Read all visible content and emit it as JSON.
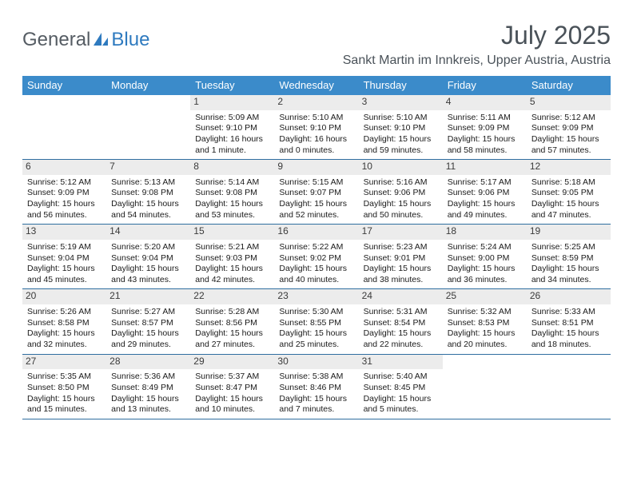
{
  "brand": {
    "general": "General",
    "blue": "Blue"
  },
  "title": "July 2025",
  "subtitle": "Sankt Martin im Innkreis, Upper Austria, Austria",
  "colors": {
    "header_bg": "#3b8bca",
    "header_text": "#ffffff",
    "rule": "#2f6ea0",
    "daynum_bg": "#ececec",
    "text": "#1a1a1a",
    "title_color": "#4a5259",
    "brand_gray": "#555c63",
    "brand_blue": "#2e7abf"
  },
  "fonts": {
    "title_size_pt": 24,
    "subtitle_size_pt": 12,
    "dow_size_pt": 10,
    "body_size_pt": 8
  },
  "days_of_week": [
    "Sunday",
    "Monday",
    "Tuesday",
    "Wednesday",
    "Thursday",
    "Friday",
    "Saturday"
  ],
  "weeks": [
    [
      {
        "num": "",
        "empty": true
      },
      {
        "num": "",
        "empty": true
      },
      {
        "num": "1",
        "sunrise": "Sunrise: 5:09 AM",
        "sunset": "Sunset: 9:10 PM",
        "dl1": "Daylight: 16 hours",
        "dl2": "and 1 minute."
      },
      {
        "num": "2",
        "sunrise": "Sunrise: 5:10 AM",
        "sunset": "Sunset: 9:10 PM",
        "dl1": "Daylight: 16 hours",
        "dl2": "and 0 minutes."
      },
      {
        "num": "3",
        "sunrise": "Sunrise: 5:10 AM",
        "sunset": "Sunset: 9:10 PM",
        "dl1": "Daylight: 15 hours",
        "dl2": "and 59 minutes."
      },
      {
        "num": "4",
        "sunrise": "Sunrise: 5:11 AM",
        "sunset": "Sunset: 9:09 PM",
        "dl1": "Daylight: 15 hours",
        "dl2": "and 58 minutes."
      },
      {
        "num": "5",
        "sunrise": "Sunrise: 5:12 AM",
        "sunset": "Sunset: 9:09 PM",
        "dl1": "Daylight: 15 hours",
        "dl2": "and 57 minutes."
      }
    ],
    [
      {
        "num": "6",
        "sunrise": "Sunrise: 5:12 AM",
        "sunset": "Sunset: 9:09 PM",
        "dl1": "Daylight: 15 hours",
        "dl2": "and 56 minutes."
      },
      {
        "num": "7",
        "sunrise": "Sunrise: 5:13 AM",
        "sunset": "Sunset: 9:08 PM",
        "dl1": "Daylight: 15 hours",
        "dl2": "and 54 minutes."
      },
      {
        "num": "8",
        "sunrise": "Sunrise: 5:14 AM",
        "sunset": "Sunset: 9:08 PM",
        "dl1": "Daylight: 15 hours",
        "dl2": "and 53 minutes."
      },
      {
        "num": "9",
        "sunrise": "Sunrise: 5:15 AM",
        "sunset": "Sunset: 9:07 PM",
        "dl1": "Daylight: 15 hours",
        "dl2": "and 52 minutes."
      },
      {
        "num": "10",
        "sunrise": "Sunrise: 5:16 AM",
        "sunset": "Sunset: 9:06 PM",
        "dl1": "Daylight: 15 hours",
        "dl2": "and 50 minutes."
      },
      {
        "num": "11",
        "sunrise": "Sunrise: 5:17 AM",
        "sunset": "Sunset: 9:06 PM",
        "dl1": "Daylight: 15 hours",
        "dl2": "and 49 minutes."
      },
      {
        "num": "12",
        "sunrise": "Sunrise: 5:18 AM",
        "sunset": "Sunset: 9:05 PM",
        "dl1": "Daylight: 15 hours",
        "dl2": "and 47 minutes."
      }
    ],
    [
      {
        "num": "13",
        "sunrise": "Sunrise: 5:19 AM",
        "sunset": "Sunset: 9:04 PM",
        "dl1": "Daylight: 15 hours",
        "dl2": "and 45 minutes."
      },
      {
        "num": "14",
        "sunrise": "Sunrise: 5:20 AM",
        "sunset": "Sunset: 9:04 PM",
        "dl1": "Daylight: 15 hours",
        "dl2": "and 43 minutes."
      },
      {
        "num": "15",
        "sunrise": "Sunrise: 5:21 AM",
        "sunset": "Sunset: 9:03 PM",
        "dl1": "Daylight: 15 hours",
        "dl2": "and 42 minutes."
      },
      {
        "num": "16",
        "sunrise": "Sunrise: 5:22 AM",
        "sunset": "Sunset: 9:02 PM",
        "dl1": "Daylight: 15 hours",
        "dl2": "and 40 minutes."
      },
      {
        "num": "17",
        "sunrise": "Sunrise: 5:23 AM",
        "sunset": "Sunset: 9:01 PM",
        "dl1": "Daylight: 15 hours",
        "dl2": "and 38 minutes."
      },
      {
        "num": "18",
        "sunrise": "Sunrise: 5:24 AM",
        "sunset": "Sunset: 9:00 PM",
        "dl1": "Daylight: 15 hours",
        "dl2": "and 36 minutes."
      },
      {
        "num": "19",
        "sunrise": "Sunrise: 5:25 AM",
        "sunset": "Sunset: 8:59 PM",
        "dl1": "Daylight: 15 hours",
        "dl2": "and 34 minutes."
      }
    ],
    [
      {
        "num": "20",
        "sunrise": "Sunrise: 5:26 AM",
        "sunset": "Sunset: 8:58 PM",
        "dl1": "Daylight: 15 hours",
        "dl2": "and 32 minutes."
      },
      {
        "num": "21",
        "sunrise": "Sunrise: 5:27 AM",
        "sunset": "Sunset: 8:57 PM",
        "dl1": "Daylight: 15 hours",
        "dl2": "and 29 minutes."
      },
      {
        "num": "22",
        "sunrise": "Sunrise: 5:28 AM",
        "sunset": "Sunset: 8:56 PM",
        "dl1": "Daylight: 15 hours",
        "dl2": "and 27 minutes."
      },
      {
        "num": "23",
        "sunrise": "Sunrise: 5:30 AM",
        "sunset": "Sunset: 8:55 PM",
        "dl1": "Daylight: 15 hours",
        "dl2": "and 25 minutes."
      },
      {
        "num": "24",
        "sunrise": "Sunrise: 5:31 AM",
        "sunset": "Sunset: 8:54 PM",
        "dl1": "Daylight: 15 hours",
        "dl2": "and 22 minutes."
      },
      {
        "num": "25",
        "sunrise": "Sunrise: 5:32 AM",
        "sunset": "Sunset: 8:53 PM",
        "dl1": "Daylight: 15 hours",
        "dl2": "and 20 minutes."
      },
      {
        "num": "26",
        "sunrise": "Sunrise: 5:33 AM",
        "sunset": "Sunset: 8:51 PM",
        "dl1": "Daylight: 15 hours",
        "dl2": "and 18 minutes."
      }
    ],
    [
      {
        "num": "27",
        "sunrise": "Sunrise: 5:35 AM",
        "sunset": "Sunset: 8:50 PM",
        "dl1": "Daylight: 15 hours",
        "dl2": "and 15 minutes."
      },
      {
        "num": "28",
        "sunrise": "Sunrise: 5:36 AM",
        "sunset": "Sunset: 8:49 PM",
        "dl1": "Daylight: 15 hours",
        "dl2": "and 13 minutes."
      },
      {
        "num": "29",
        "sunrise": "Sunrise: 5:37 AM",
        "sunset": "Sunset: 8:47 PM",
        "dl1": "Daylight: 15 hours",
        "dl2": "and 10 minutes."
      },
      {
        "num": "30",
        "sunrise": "Sunrise: 5:38 AM",
        "sunset": "Sunset: 8:46 PM",
        "dl1": "Daylight: 15 hours",
        "dl2": "and 7 minutes."
      },
      {
        "num": "31",
        "sunrise": "Sunrise: 5:40 AM",
        "sunset": "Sunset: 8:45 PM",
        "dl1": "Daylight: 15 hours",
        "dl2": "and 5 minutes."
      },
      {
        "num": "",
        "empty": true
      },
      {
        "num": "",
        "empty": true
      }
    ]
  ]
}
